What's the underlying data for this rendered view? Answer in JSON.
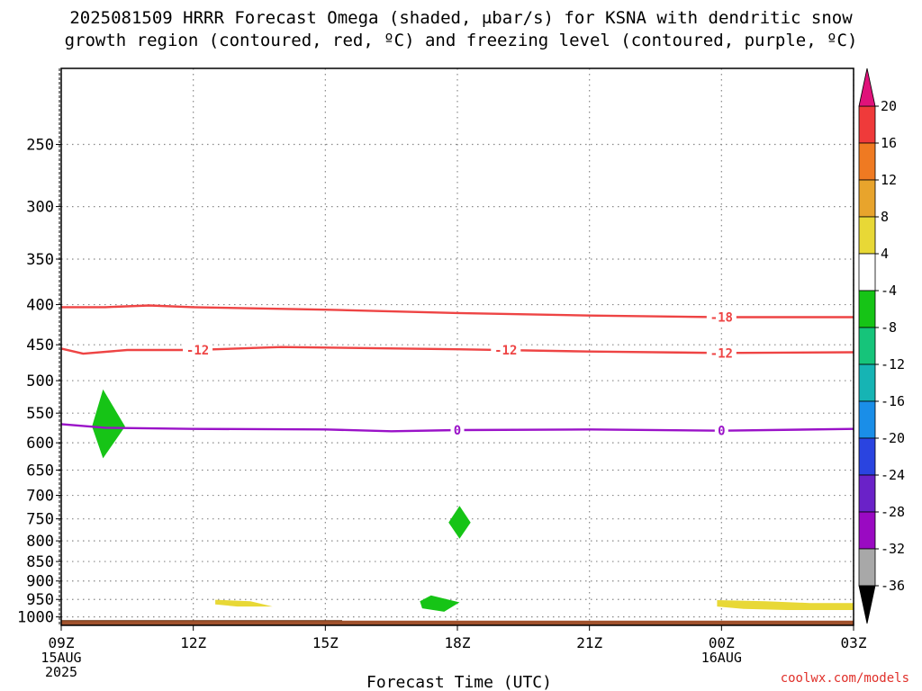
{
  "title": {
    "line1": "2025081509 HRRR Forecast Omega (shaded, μbar/s) for KSNA with dendritic snow",
    "line2": "growth region (contoured, red, ºC) and freezing level (contoured, purple, ºC)"
  },
  "credit": "coolwx.com/models",
  "chart_data": {
    "type": "heatmap",
    "xlabel": "Forecast Time (UTC)",
    "ylabel": "",
    "x_range_hours": [
      0,
      18
    ],
    "x_ticks": [
      {
        "hour": 0,
        "label": "09Z",
        "sub": [
          "15AUG",
          "2025"
        ]
      },
      {
        "hour": 3,
        "label": "12Z",
        "sub": []
      },
      {
        "hour": 6,
        "label": "15Z",
        "sub": []
      },
      {
        "hour": 9,
        "label": "18Z",
        "sub": []
      },
      {
        "hour": 12,
        "label": "21Z",
        "sub": []
      },
      {
        "hour": 15,
        "label": "00Z",
        "sub": [
          "16AUG"
        ]
      },
      {
        "hour": 18,
        "label": "03Z",
        "sub": []
      }
    ],
    "y_ticks": [
      250,
      300,
      350,
      400,
      450,
      500,
      550,
      600,
      650,
      700,
      750,
      800,
      850,
      900,
      950,
      1000
    ],
    "y_range_hpa": [
      200,
      1025
    ],
    "y_scale": "log-pressure",
    "grid": true,
    "colorbar": {
      "labels": [
        "20",
        "16",
        "12",
        "8",
        "4",
        "-4",
        "-8",
        "-12",
        "-16",
        "-20",
        "-24",
        "-28",
        "-32",
        "-36"
      ],
      "segments": [
        "#ef3a3a",
        "#ef7a22",
        "#e8a42c",
        "#e8d836",
        "#ffffff",
        "#16c416",
        "#16c47a",
        "#16b4b4",
        "#1a8ee8",
        "#2a44e0",
        "#6a22c8",
        "#9a0ac2",
        "#a8a8a8"
      ],
      "top_arrow": "#e0127a",
      "bottom_arrow": "#000000"
    },
    "contours": [
      {
        "color": "#ee4444",
        "label": "-18",
        "points": [
          [
            0,
            403
          ],
          [
            1,
            403
          ],
          [
            2,
            401
          ],
          [
            3,
            403
          ],
          [
            6,
            406
          ],
          [
            9,
            410
          ],
          [
            12,
            413
          ],
          [
            15,
            415
          ],
          [
            18,
            415
          ]
        ],
        "label_hours": [
          15
        ]
      },
      {
        "color": "#ee4444",
        "label": "-12",
        "points": [
          [
            0,
            455
          ],
          [
            0.5,
            462
          ],
          [
            1.5,
            457
          ],
          [
            3,
            457
          ],
          [
            5,
            453
          ],
          [
            9,
            456
          ],
          [
            12,
            459
          ],
          [
            15,
            461
          ],
          [
            18,
            460
          ]
        ],
        "label_hours": [
          3.1,
          10.1,
          15
        ]
      },
      {
        "color": "#9a12c8",
        "label": "0",
        "points": [
          [
            0,
            568
          ],
          [
            1,
            574
          ],
          [
            3,
            576
          ],
          [
            6,
            577
          ],
          [
            7.5,
            580
          ],
          [
            9,
            578
          ],
          [
            12,
            577
          ],
          [
            15,
            579
          ],
          [
            18,
            576
          ]
        ],
        "label_hours": [
          9,
          15
        ]
      }
    ],
    "shaded": [
      {
        "value_range": [
          -8,
          -4
        ],
        "color": "#16c416",
        "points": [
          [
            0.95,
            513
          ],
          [
            1.45,
            572
          ],
          [
            0.95,
            628
          ],
          [
            0.7,
            572
          ]
        ]
      },
      {
        "value_range": [
          -8,
          -4
        ],
        "color": "#16c416",
        "points": [
          [
            9.05,
            722
          ],
          [
            9.3,
            758
          ],
          [
            9.05,
            795
          ],
          [
            8.8,
            758
          ]
        ]
      },
      {
        "value_range": [
          -8,
          -4
        ],
        "color": "#16c416",
        "points": [
          [
            8.4,
            939
          ],
          [
            9.05,
            958
          ],
          [
            8.7,
            985
          ],
          [
            8.2,
            975
          ],
          [
            8.15,
            955
          ]
        ]
      },
      {
        "value_range": [
          4,
          8
        ],
        "color": "#e8d836",
        "points": [
          [
            3.5,
            951
          ],
          [
            4.3,
            955
          ],
          [
            4.8,
            970
          ],
          [
            4.0,
            970
          ],
          [
            3.5,
            964
          ]
        ]
      },
      {
        "value_range": [
          4,
          8
        ],
        "color": "#e8d836",
        "points": [
          [
            14.9,
            952
          ],
          [
            16,
            955
          ],
          [
            17,
            960
          ],
          [
            18,
            960
          ],
          [
            18,
            980
          ],
          [
            16.5,
            980
          ],
          [
            15.5,
            977
          ],
          [
            14.9,
            970
          ]
        ]
      }
    ],
    "terrain": {
      "color": "#a0522d",
      "top_hpa": 1011
    }
  }
}
